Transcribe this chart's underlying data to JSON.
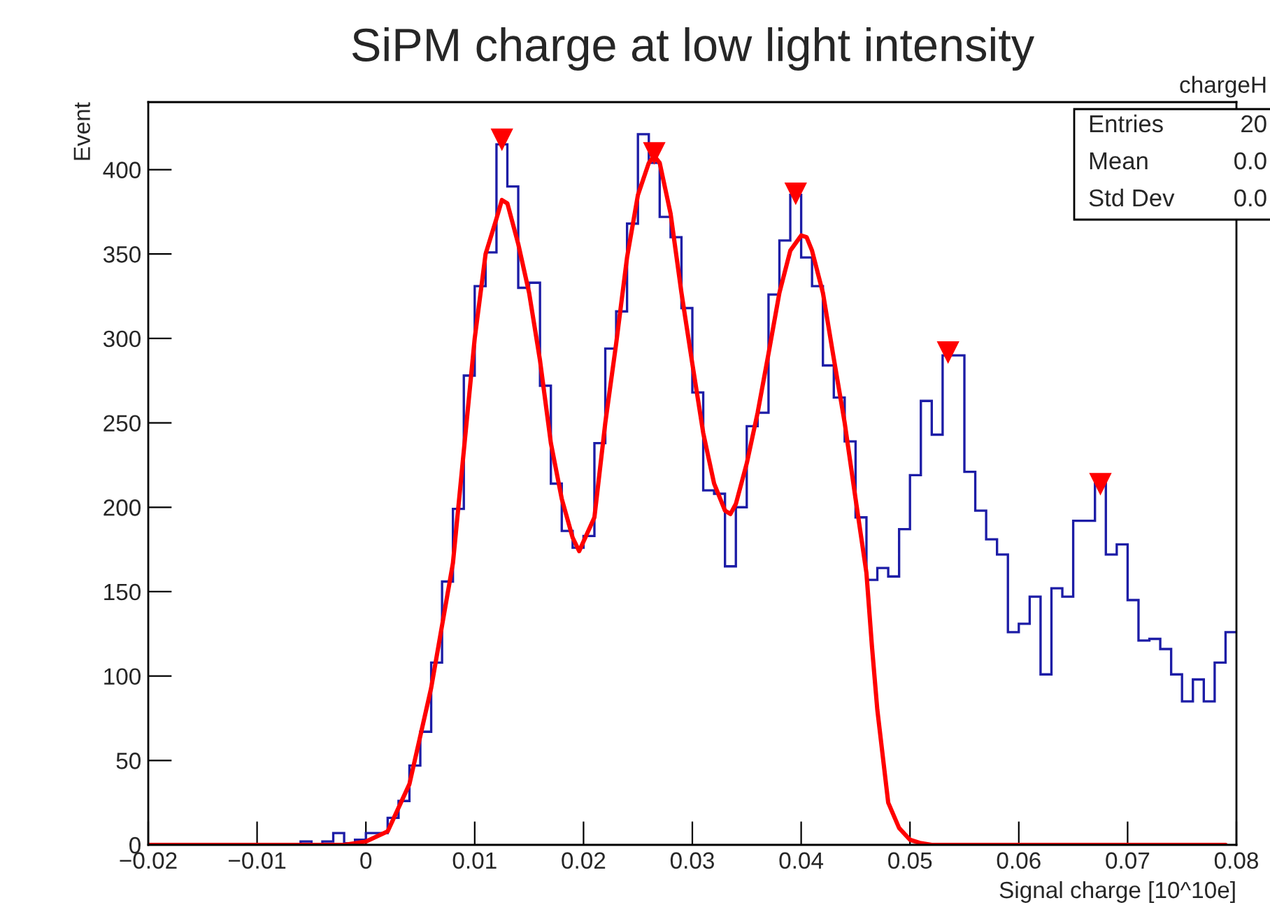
{
  "chart_data": {
    "type": "histogram",
    "title": "SiPM charge at low light intensity",
    "xlabel": "Signal charge [10^10e]",
    "ylabel": "Event",
    "xlim": [
      -0.02,
      0.08
    ],
    "ylim": [
      0,
      440
    ],
    "xticks": [
      {
        "value": -0.02,
        "label": "−0.02"
      },
      {
        "value": -0.01,
        "label": "−0.01"
      },
      0,
      0.01,
      0.02,
      0.03,
      0.04,
      0.05,
      0.06,
      0.07,
      0.08
    ],
    "yticks": [
      0,
      50,
      100,
      150,
      200,
      250,
      300,
      350,
      400
    ],
    "grid": false,
    "annotations": [
      "chargeH",
      "Entries",
      "20",
      "Mean",
      "0.0",
      "Std Dev",
      "0.0"
    ],
    "series": [
      {
        "type": "histogram",
        "color": "#1c1ca6",
        "bins": [
          -0.02,
          -0.019,
          -0.018,
          -0.017,
          -0.016,
          -0.015,
          -0.014,
          -0.013,
          -0.012,
          -0.011,
          -0.01,
          -0.009,
          -0.008,
          -0.007,
          -0.006,
          -0.005,
          -0.004,
          -0.003,
          -0.002,
          -0.001,
          0,
          0.001,
          0.002,
          0.003,
          0.004,
          0.005,
          0.006,
          0.007,
          0.008,
          0.009,
          0.01,
          0.011,
          0.012,
          0.013,
          0.014,
          0.015,
          0.016,
          0.017,
          0.018,
          0.019,
          0.02,
          0.021,
          0.022,
          0.023,
          0.024,
          0.025,
          0.026,
          0.027,
          0.028,
          0.029,
          0.03,
          0.031,
          0.032,
          0.033,
          0.034,
          0.035,
          0.036,
          0.037,
          0.038,
          0.039,
          0.04,
          0.041,
          0.042,
          0.043,
          0.044,
          0.045,
          0.046,
          0.047,
          0.048,
          0.049,
          0.05,
          0.051,
          0.052,
          0.053,
          0.054,
          0.055,
          0.056,
          0.057,
          0.058,
          0.059,
          0.06,
          0.061,
          0.062,
          0.063,
          0.064,
          0.065,
          0.066,
          0.067,
          0.068,
          0.069,
          0.07,
          0.071,
          0.072,
          0.073,
          0.074,
          0.075,
          0.076,
          0.077,
          0.078,
          0.079,
          0.08
        ],
        "values": [
          0,
          0,
          0,
          0,
          0,
          0,
          0,
          0,
          0,
          0,
          0,
          0,
          0,
          0,
          2,
          0,
          2,
          7,
          1,
          3,
          7,
          7,
          16,
          26,
          47,
          67,
          108,
          156,
          199,
          278,
          331,
          351,
          415,
          390,
          330,
          333,
          272,
          214,
          186,
          176,
          183,
          238,
          294,
          316,
          368,
          421,
          404,
          372,
          360,
          318,
          268,
          210,
          208,
          165,
          200,
          248,
          256,
          326,
          358,
          385,
          348,
          331,
          284,
          265,
          239,
          194,
          157,
          164,
          159,
          187,
          219,
          263,
          243,
          290,
          290,
          221,
          198,
          181,
          172,
          126,
          131,
          147,
          101,
          152,
          147,
          192,
          192,
          214,
          172,
          178,
          145,
          121,
          122,
          116,
          101,
          85,
          98,
          85,
          108,
          126
        ]
      },
      {
        "type": "line",
        "color": "#ff0000",
        "line_style": "solid",
        "x": [
          -0.02,
          -0.002,
          0,
          0.002,
          0.004,
          0.006,
          0.008,
          0.01,
          0.011,
          0.012,
          0.0125,
          0.013,
          0.014,
          0.015,
          0.016,
          0.017,
          0.018,
          0.019,
          0.0196,
          0.021,
          0.022,
          0.023,
          0.024,
          0.025,
          0.026,
          0.0265,
          0.027,
          0.028,
          0.029,
          0.03,
          0.031,
          0.032,
          0.033,
          0.0335,
          0.034,
          0.035,
          0.036,
          0.037,
          0.038,
          0.039,
          0.04,
          0.0405,
          0.041,
          0.042,
          0.043,
          0.044,
          0.045,
          0.046,
          0.0465,
          0.047,
          0.048,
          0.049,
          0.05,
          0.051,
          0.052,
          0.079
        ],
        "values": [
          0,
          0,
          2,
          8,
          36,
          93,
          167,
          300,
          350,
          371,
          382,
          380,
          356,
          327,
          287,
          238,
          205,
          182,
          174,
          194,
          250,
          297,
          348,
          385,
          404,
          408,
          404,
          374,
          327,
          285,
          244,
          214,
          198,
          196,
          202,
          226,
          256,
          291,
          327,
          352,
          361,
          360,
          352,
          327,
          288,
          250,
          205,
          161,
          118,
          80,
          25,
          10,
          3,
          1,
          0,
          0
        ]
      },
      {
        "type": "scatter",
        "color": "#ff0000",
        "marker": "triangle",
        "x": [
          0.0125,
          0.0265,
          0.0395,
          0.0535,
          0.0675
        ],
        "values": [
          418,
          410,
          386,
          292,
          214
        ]
      }
    ]
  }
}
